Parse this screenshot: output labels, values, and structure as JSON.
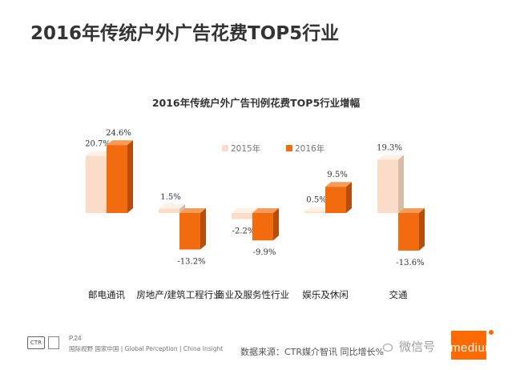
{
  "slide_title": "2016年传统户外广告花费TOP5行业",
  "chart_data": {
    "type": "bar",
    "title": "2016年传统户外广告刊例花费TOP5行业增幅",
    "categories": [
      "邮电通讯",
      "房地产/建筑工程行业",
      "商业及服务性行业",
      "娱乐及休闲",
      "交通"
    ],
    "series": [
      {
        "name": "2015年",
        "values": [
          20.7,
          1.5,
          -2.2,
          0.5,
          19.3
        ],
        "labels": [
          "20.7%",
          "1.5%",
          "-2.2%",
          "0.5%",
          "19.3%"
        ],
        "color": "#fbdcc8"
      },
      {
        "name": "2016年",
        "values": [
          24.6,
          -13.2,
          -9.9,
          9.5,
          -13.6
        ],
        "labels": [
          "24.6%",
          "-13.2%",
          "-9.9%",
          "9.5%",
          "-13.6%"
        ],
        "color": "#f26b0f"
      }
    ],
    "ylim": [
      -15,
      27
    ],
    "legend_position": "top-center",
    "grid": false,
    "xlabel": "",
    "ylabel": ""
  },
  "footer": {
    "page": "P.24",
    "tagline": "国际视野  国家中国 | Global Perception | China Insight",
    "logo_text": "CTR",
    "source": "数据来源：CTR媒介智讯    同比增长%",
    "watermark": "微信号",
    "brand": "medium"
  },
  "colors": {
    "accent": "#ff6a00"
  }
}
